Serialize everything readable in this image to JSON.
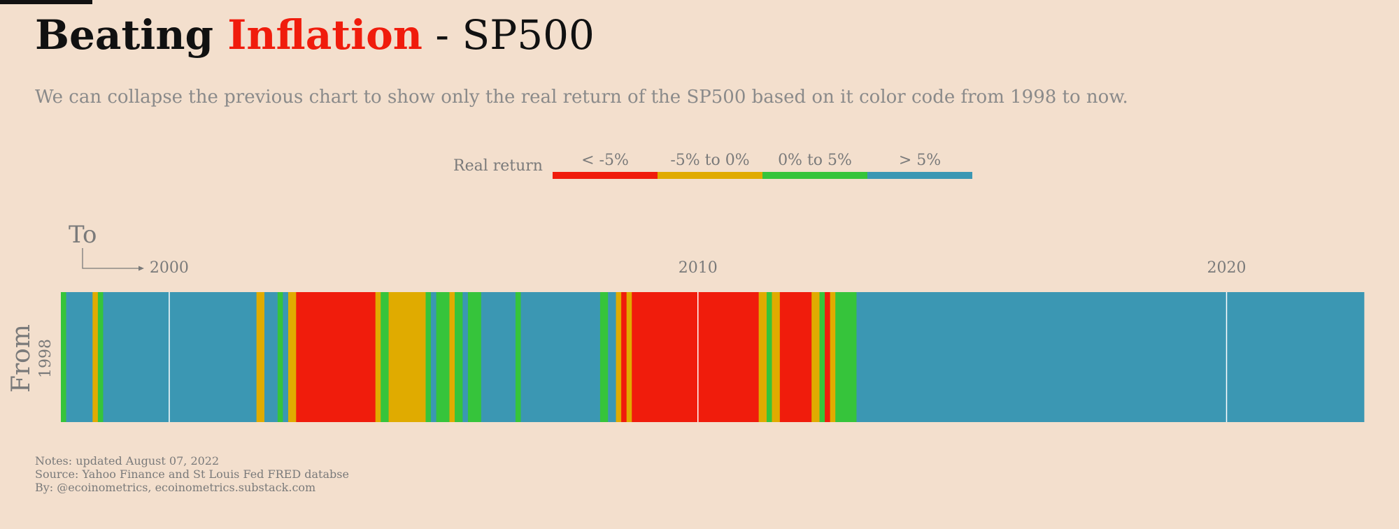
{
  "title": {
    "part1": "Beating ",
    "part2": "Inflation",
    "part3": " - SP500"
  },
  "subtitle": "We can collapse the previous chart to show only the real return of the SP500 based on it color code from 1998 to now.",
  "legend": {
    "label": "Real return",
    "items": [
      {
        "label": "< -5%",
        "color": "#f01c0c"
      },
      {
        "label": "-5% to 0%",
        "color": "#e0ab00"
      },
      {
        "label": "0% to 5%",
        "color": "#36c43b"
      },
      {
        "label": "> 5%",
        "color": "#3b97b3"
      }
    ]
  },
  "chart_data": {
    "type": "heatmap",
    "x_axis_title": "To",
    "y_axis_title": "From",
    "row_label": "1998",
    "xlim": [
      1997.95,
      2022.6
    ],
    "xticks": [
      2000,
      2010,
      2020
    ],
    "category_colors": {
      "<-5": "#f01c0c",
      "-5to0": "#e0ab00",
      "0to5": "#36c43b",
      ">5": "#3b97b3"
    },
    "segments": [
      {
        "start": 1997.95,
        "end": 1998.05,
        "category": "0to5"
      },
      {
        "start": 1998.05,
        "end": 1998.55,
        "category": ">5"
      },
      {
        "start": 1998.55,
        "end": 1998.65,
        "category": "-5to0"
      },
      {
        "start": 1998.65,
        "end": 1998.75,
        "category": "0to5"
      },
      {
        "start": 1998.75,
        "end": 2001.65,
        "category": ">5"
      },
      {
        "start": 2001.65,
        "end": 2001.8,
        "category": "-5to0"
      },
      {
        "start": 2001.8,
        "end": 2002.05,
        "category": ">5"
      },
      {
        "start": 2002.05,
        "end": 2002.15,
        "category": "0to5"
      },
      {
        "start": 2002.15,
        "end": 2002.25,
        "category": ">5"
      },
      {
        "start": 2002.25,
        "end": 2002.4,
        "category": "-5to0"
      },
      {
        "start": 2002.4,
        "end": 2003.9,
        "category": "<-5"
      },
      {
        "start": 2003.9,
        "end": 2004.0,
        "category": "-5to0"
      },
      {
        "start": 2004.0,
        "end": 2004.15,
        "category": "0to5"
      },
      {
        "start": 2004.15,
        "end": 2004.85,
        "category": "-5to0"
      },
      {
        "start": 2004.85,
        "end": 2004.95,
        "category": "0to5"
      },
      {
        "start": 2004.95,
        "end": 2005.05,
        "category": ">5"
      },
      {
        "start": 2005.05,
        "end": 2005.3,
        "category": "0to5"
      },
      {
        "start": 2005.3,
        "end": 2005.4,
        "category": "-5to0"
      },
      {
        "start": 2005.4,
        "end": 2005.55,
        "category": "0to5"
      },
      {
        "start": 2005.55,
        "end": 2005.65,
        "category": ">5"
      },
      {
        "start": 2005.65,
        "end": 2005.9,
        "category": "0to5"
      },
      {
        "start": 2005.9,
        "end": 2006.55,
        "category": ">5"
      },
      {
        "start": 2006.55,
        "end": 2006.65,
        "category": "0to5"
      },
      {
        "start": 2006.65,
        "end": 2008.15,
        "category": ">5"
      },
      {
        "start": 2008.15,
        "end": 2008.3,
        "category": "0to5"
      },
      {
        "start": 2008.3,
        "end": 2008.45,
        "category": ">5"
      },
      {
        "start": 2008.45,
        "end": 2008.55,
        "category": "-5to0"
      },
      {
        "start": 2008.55,
        "end": 2008.65,
        "category": "<-5"
      },
      {
        "start": 2008.65,
        "end": 2008.75,
        "category": "-5to0"
      },
      {
        "start": 2008.75,
        "end": 2011.15,
        "category": "<-5"
      },
      {
        "start": 2011.15,
        "end": 2011.3,
        "category": "-5to0"
      },
      {
        "start": 2011.3,
        "end": 2011.4,
        "category": "0to5"
      },
      {
        "start": 2011.4,
        "end": 2011.55,
        "category": "-5to0"
      },
      {
        "start": 2011.55,
        "end": 2012.15,
        "category": "<-5"
      },
      {
        "start": 2012.15,
        "end": 2012.3,
        "category": "-5to0"
      },
      {
        "start": 2012.3,
        "end": 2012.4,
        "category": "0to5"
      },
      {
        "start": 2012.4,
        "end": 2012.5,
        "category": "<-5"
      },
      {
        "start": 2012.5,
        "end": 2012.6,
        "category": "-5to0"
      },
      {
        "start": 2012.6,
        "end": 2013.0,
        "category": "0to5"
      },
      {
        "start": 2013.0,
        "end": 2022.6,
        "category": ">5"
      }
    ],
    "year_lines": [
      2000,
      2010,
      2020
    ]
  },
  "notes": {
    "line1": "Notes: updated August 07, 2022",
    "line2": "Source: Yahoo Finance and St Louis Fed FRED databse",
    "line3": "By: @ecoinometrics, ecoinometrics.substack.com"
  }
}
